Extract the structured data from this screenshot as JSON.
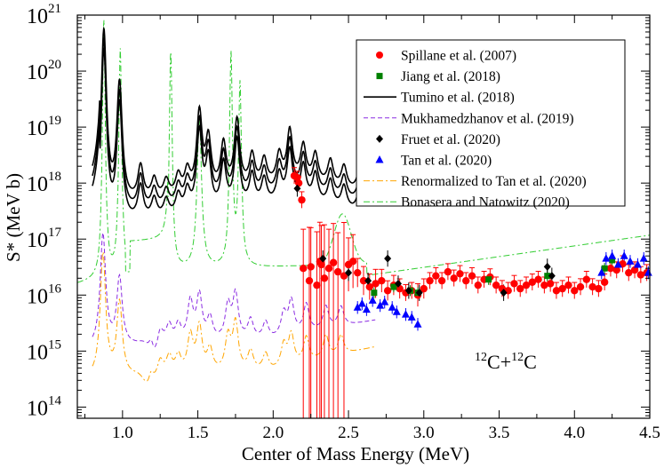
{
  "chart_data": {
    "type": "scatter",
    "title": "",
    "xlabel": "Center of Mass Energy (MeV)",
    "ylabel": "S* (MeV b)",
    "annotation": {
      "mass_a": "12",
      "element_a": "C",
      "plus": "+",
      "mass_b": "12",
      "element_b": "C"
    },
    "xlim": [
      0.7,
      4.5
    ],
    "ylim_log10": [
      13.8,
      21.0
    ],
    "x_ticks": [
      "1.0",
      "1.5",
      "2.0",
      "2.5",
      "3.0",
      "3.5",
      "4.0",
      "4.5"
    ],
    "y_ticks": [
      {
        "base": "10",
        "exp": "14"
      },
      {
        "base": "10",
        "exp": "15"
      },
      {
        "base": "10",
        "exp": "16"
      },
      {
        "base": "10",
        "exp": "17"
      },
      {
        "base": "10",
        "exp": "18"
      },
      {
        "base": "10",
        "exp": "19"
      },
      {
        "base": "10",
        "exp": "20"
      },
      {
        "base": "10",
        "exp": "21"
      }
    ],
    "legend_position": "top-right",
    "colors": {
      "spillane": "#ff0000",
      "jiang": "#008000",
      "tumino": "#000000",
      "mukhamedzhanov": "#8a2be2",
      "fruet": "#000000",
      "tan": "#0000ff",
      "renormalized": "#ffa500",
      "bonasera": "#32cd32"
    },
    "series": [
      {
        "name": "Spillane et al. (2007)",
        "marker": "circle",
        "x": [
          2.14,
          2.16,
          2.17,
          2.19,
          2.2,
          2.24,
          2.25,
          2.29,
          2.31,
          2.32,
          2.34,
          2.37,
          2.4,
          2.43,
          2.47,
          2.5,
          2.53,
          2.56,
          2.6,
          2.64,
          2.68,
          2.72,
          2.76,
          2.8,
          2.84,
          2.88,
          2.92,
          2.96,
          3.0,
          3.04,
          3.08,
          3.12,
          3.16,
          3.2,
          3.24,
          3.28,
          3.32,
          3.36,
          3.4,
          3.44,
          3.48,
          3.52,
          3.56,
          3.6,
          3.64,
          3.68,
          3.72,
          3.76,
          3.8,
          3.84,
          3.88,
          3.92,
          3.96,
          4.0,
          4.04,
          4.08,
          4.12,
          4.16,
          4.2,
          4.24,
          4.28,
          4.32,
          4.36,
          4.4,
          4.44,
          4.48
        ],
        "y": [
          1.35e+18,
          1.25e+18,
          1e+18,
          5e+17,
          3e+16,
          1.8e+16,
          3.2e+16,
          1.5e+16,
          4e+16,
          3.5e+16,
          2e+16,
          3e+16,
          3.8e+16,
          2.6e+16,
          2.2e+16,
          3.5e+16,
          4e+16,
          2.5e+16,
          1.8e+16,
          1.4e+16,
          1.6e+16,
          1.8e+16,
          1.2e+16,
          1.5e+16,
          1.3e+16,
          1.1e+16,
          1.2e+16,
          1e+16,
          1.3e+16,
          1.8e+16,
          2.2e+16,
          1.8e+16,
          2.6e+16,
          2e+16,
          2.4e+16,
          1.8e+16,
          2.2e+16,
          1.5e+16,
          1.9e+16,
          2.1e+16,
          1.5e+16,
          1.3e+16,
          1.2e+16,
          1.6e+16,
          1.3e+16,
          1.5e+16,
          1.7e+16,
          1.9e+16,
          1.5e+16,
          1.6e+16,
          1.2e+16,
          1.3e+16,
          1.5e+16,
          1.2e+16,
          1.4e+16,
          1.9e+16,
          1.4e+16,
          1.3e+16,
          1.7e+16,
          3e+16,
          2.8e+16,
          3.6e+16,
          2.5e+16,
          2.8e+16,
          2.3e+16,
          2.5e+16
        ],
        "err_factor": [
          1.4,
          1.3,
          1.3,
          1.4,
          5,
          9,
          5,
          9,
          5,
          5,
          9,
          5,
          5,
          5,
          9,
          3,
          3,
          1.8,
          1.8,
          1.7,
          1.8,
          1.6,
          1.5,
          1.5,
          1.5,
          1.4,
          1.4,
          1.6,
          1.5,
          1.4,
          1.4,
          1.4,
          1.4,
          1.4,
          1.4,
          1.4,
          1.4,
          1.4,
          1.4,
          1.4,
          1.4,
          1.4,
          1.4,
          1.4,
          1.4,
          1.4,
          1.4,
          1.4,
          1.4,
          1.4,
          1.4,
          1.4,
          1.4,
          1.4,
          1.4,
          1.4,
          1.4,
          1.4,
          1.4,
          1.4,
          1.4,
          1.4,
          1.4,
          1.4,
          1.4,
          1.4
        ]
      },
      {
        "name": "Jiang et al. (2018)",
        "marker": "square",
        "x": [
          2.67,
          2.8,
          2.91,
          2.96,
          3.43,
          3.82,
          4.2,
          4.25
        ],
        "y": [
          1.1e+16,
          1.4e+16,
          1.2e+16,
          1.1e+16,
          1.9e+16,
          2.2e+16,
          3e+16,
          4.2e+16
        ]
      },
      {
        "name": "Tumino et al. (2018)",
        "marker": "line",
        "style": "solid"
      },
      {
        "name": "Mukhamedzhanov et al. (2019)",
        "marker": "line",
        "style": "dashed"
      },
      {
        "name": "Fruet et al. (2020)",
        "marker": "diamond",
        "x": [
          2.16,
          2.33,
          2.5,
          2.63,
          2.76,
          2.83,
          2.9,
          2.97,
          3.53,
          3.82,
          3.85
        ],
        "y": [
          8e+17,
          4.5e+16,
          2.5e+16,
          1.8e+16,
          4.5e+16,
          1.6e+16,
          1.2e+16,
          1.1e+16,
          1.1e+16,
          3.2e+16,
          2.2e+16
        ]
      },
      {
        "name": "Tan et al. (2020)",
        "marker": "triangle",
        "x": [
          2.56,
          2.59,
          2.62,
          2.66,
          2.71,
          2.74,
          2.79,
          2.82,
          2.88,
          2.92,
          2.96,
          4.18,
          4.21,
          4.25,
          4.29,
          4.33,
          4.37,
          4.42,
          4.46,
          4.49
        ],
        "y": [
          6000000000000000.0,
          7000000000000000.0,
          5500000000000000.0,
          8000000000000000.0,
          6500000000000000.0,
          7500000000000000.0,
          6000000000000000.0,
          5000000000000000.0,
          4500000000000000.0,
          4000000000000000.0,
          3000000000000000.0,
          2.5e+16,
          4.5e+16,
          5e+16,
          3.5e+16,
          5e+16,
          4e+16,
          3.5e+16,
          4.5e+16,
          2.5e+16
        ]
      },
      {
        "name": "Renormalized to Tan et al. (2020)",
        "marker": "line",
        "style": "dashdot"
      },
      {
        "name": "Bonasera and Natowitz (2020)",
        "marker": "line",
        "style": "dashdot"
      }
    ]
  }
}
